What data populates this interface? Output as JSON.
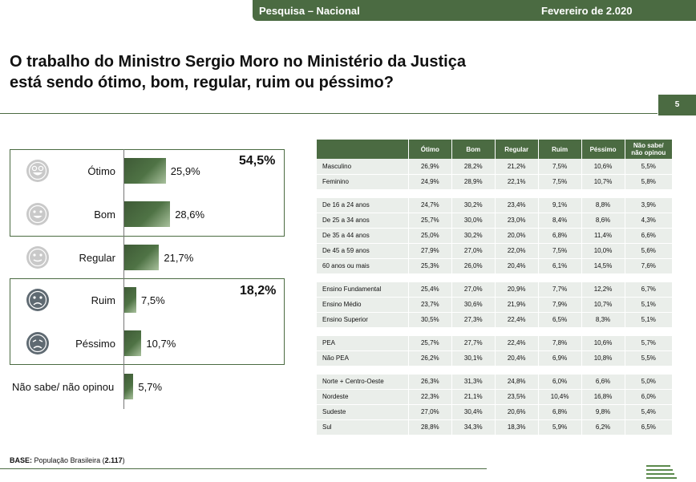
{
  "header": {
    "survey": "Pesquisa – Nacional",
    "date": "Fevereiro de 2.020"
  },
  "question": {
    "line1": "O trabalho do Ministro Sergio Moro no Ministério da Justiça",
    "line2": "está sendo ótimo, bom, regular, ruim ou péssimo?"
  },
  "page_number": "5",
  "groups": {
    "positive_total": "54,5%",
    "negative_total": "18,2%"
  },
  "base": {
    "label": "BASE:",
    "text": "População Brasileira (",
    "n": "2.117",
    "close": ")"
  },
  "icons": [
    "very-happy-face-icon",
    "happy-face-icon",
    "neutral-face-icon",
    "sad-face-icon",
    "very-sad-face-icon"
  ],
  "colors": {
    "primary": "#4b6b42",
    "table_row": "#eaeeea",
    "icon_light": "#c9c9c9",
    "icon_dark": "#5f6a72"
  },
  "chart_data": [
    {
      "type": "bar",
      "orientation": "horizontal",
      "categories": [
        "Ótimo",
        "Bom",
        "Regular",
        "Ruim",
        "Péssimo",
        "Não sabe/ não opinou"
      ],
      "values": [
        25.9,
        28.6,
        21.7,
        7.5,
        10.7,
        5.7
      ],
      "labels": [
        "25,9%",
        "28,6%",
        "21,7%",
        "7,5%",
        "10,7%",
        "5,7%"
      ]
    },
    {
      "type": "table",
      "columns": [
        "",
        "Ótimo",
        "Bom",
        "Regular",
        "Ruim",
        "Péssimo",
        "Não sabe/\nnão opinou"
      ],
      "groups": [
        {
          "rows": [
            [
              "Masculino",
              "26,9%",
              "28,2%",
              "21,2%",
              "7,5%",
              "10,6%",
              "5,5%"
            ],
            [
              "Feminino",
              "24,9%",
              "28,9%",
              "22,1%",
              "7,5%",
              "10,7%",
              "5,8%"
            ]
          ]
        },
        {
          "rows": [
            [
              "De 16 a 24 anos",
              "24,7%",
              "30,2%",
              "23,4%",
              "9,1%",
              "8,8%",
              "3,9%"
            ],
            [
              "De 25 a 34 anos",
              "25,7%",
              "30,0%",
              "23,0%",
              "8,4%",
              "8,6%",
              "4,3%"
            ],
            [
              "De 35 a 44 anos",
              "25,0%",
              "30,2%",
              "20,0%",
              "6,8%",
              "11,4%",
              "6,6%"
            ],
            [
              "De 45 a 59 anos",
              "27,9%",
              "27,0%",
              "22,0%",
              "7,5%",
              "10,0%",
              "5,6%"
            ],
            [
              "60 anos ou mais",
              "25,3%",
              "26,0%",
              "20,4%",
              "6,1%",
              "14,5%",
              "7,6%"
            ]
          ]
        },
        {
          "rows": [
            [
              "Ensino Fundamental",
              "25,4%",
              "27,0%",
              "20,9%",
              "7,7%",
              "12,2%",
              "6,7%"
            ],
            [
              "Ensino Médio",
              "23,7%",
              "30,6%",
              "21,9%",
              "7,9%",
              "10,7%",
              "5,1%"
            ],
            [
              "Ensino Superior",
              "30,5%",
              "27,3%",
              "22,4%",
              "6,5%",
              "8,3%",
              "5,1%"
            ]
          ]
        },
        {
          "rows": [
            [
              "PEA",
              "25,7%",
              "27,7%",
              "22,4%",
              "7,8%",
              "10,6%",
              "5,7%"
            ],
            [
              "Não PEA",
              "26,2%",
              "30,1%",
              "20,4%",
              "6,9%",
              "10,8%",
              "5,5%"
            ]
          ]
        },
        {
          "rows": [
            [
              "Norte + Centro-Oeste",
              "26,3%",
              "31,3%",
              "24,8%",
              "6,0%",
              "6,6%",
              "5,0%"
            ],
            [
              "Nordeste",
              "22,3%",
              "21,1%",
              "23,5%",
              "10,4%",
              "16,8%",
              "6,0%"
            ],
            [
              "Sudeste",
              "27,0%",
              "30,4%",
              "20,6%",
              "6,8%",
              "9,8%",
              "5,4%"
            ],
            [
              "Sul",
              "28,8%",
              "34,3%",
              "18,3%",
              "5,9%",
              "6,2%",
              "6,5%"
            ]
          ]
        }
      ]
    }
  ]
}
